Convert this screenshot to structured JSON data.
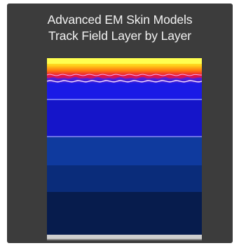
{
  "title": {
    "line1": "Advanced EM Skin Models",
    "line2": "Track Field Layer by Layer"
  },
  "colors": {
    "background": "#3c3c3c",
    "title_text": "#f2f2f2",
    "field_hot": "#ffff30",
    "field_warm": "#ff8a00",
    "field_mid": "#e0103a",
    "field_cool": "#c01aa8",
    "layer_band_1": "#1a1ae6",
    "layer_band_2": "#1515c9",
    "layer_band_3": "#0f3a9e",
    "layer_band_4": "#0a2c7a",
    "layer_band_5": "#071c4d",
    "layer_boundary": "#c8d4ff"
  }
}
